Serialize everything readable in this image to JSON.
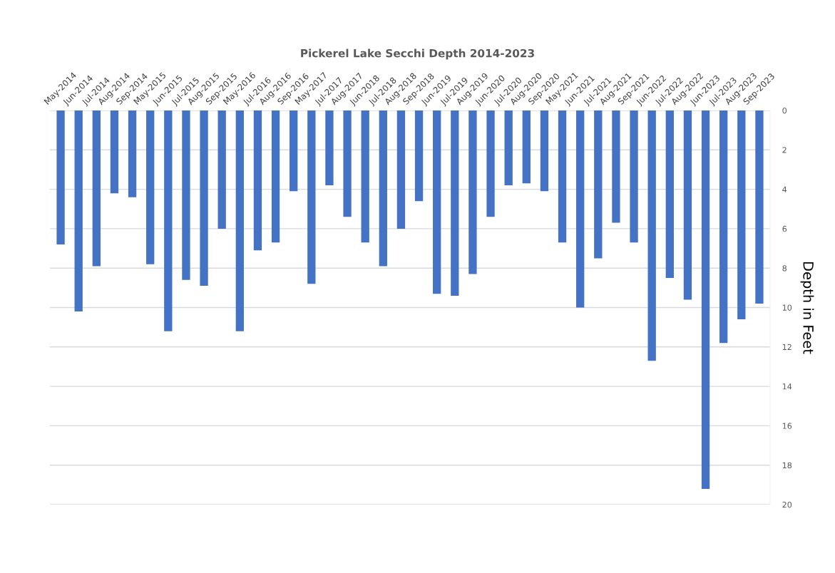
{
  "chart_data": {
    "type": "bar",
    "title": "Pickerel Lake Secchi Depth 2014-2023",
    "ylabel": "Depth in Feet",
    "categories": [
      "May-2014",
      "Jun-2014",
      "Jul-2014",
      "Aug-2014",
      "Sep-2014",
      "May-2015",
      "Jun-2015",
      "Jul-2015",
      "Aug-2015",
      "Sep-2015",
      "May-2016",
      "Jul-2016",
      "Aug-2016",
      "Sep-2016",
      "May-2017",
      "Jul-2017",
      "Aug-2017",
      "Jun-2018",
      "Jul-2018",
      "Aug-2018",
      "Sep-2018",
      "Jun-2019",
      "Jul-2019",
      "Aug-2019",
      "Jun-2020",
      "Jul-2020",
      "Aug-2020",
      "Sep-2020",
      "May-2021",
      "Jun-2021",
      "Jul-2021",
      "Aug-2021",
      "Sep-2021",
      "Jun-2022",
      "Jul-2022",
      "Aug-2022",
      "Jun-2023",
      "Jul-2023",
      "Aug-2023",
      "Sep-2023"
    ],
    "values": [
      6.8,
      10.2,
      7.9,
      4.2,
      4.4,
      7.8,
      11.2,
      8.6,
      8.9,
      6.0,
      11.2,
      7.1,
      6.7,
      4.1,
      8.8,
      3.8,
      5.4,
      6.7,
      7.9,
      6.0,
      4.6,
      9.3,
      9.4,
      8.3,
      5.4,
      3.8,
      3.7,
      4.1,
      6.7,
      10.0,
      7.5,
      5.7,
      6.7,
      12.7,
      8.5,
      9.6,
      19.2,
      11.8,
      10.6,
      9.8
    ],
    "color": "#4472c4",
    "ylim": [
      20,
      0
    ],
    "yticks": [
      0,
      2,
      4,
      6,
      8,
      10,
      12,
      14,
      16,
      18,
      20
    ],
    "grid": "y",
    "legend": false
  }
}
